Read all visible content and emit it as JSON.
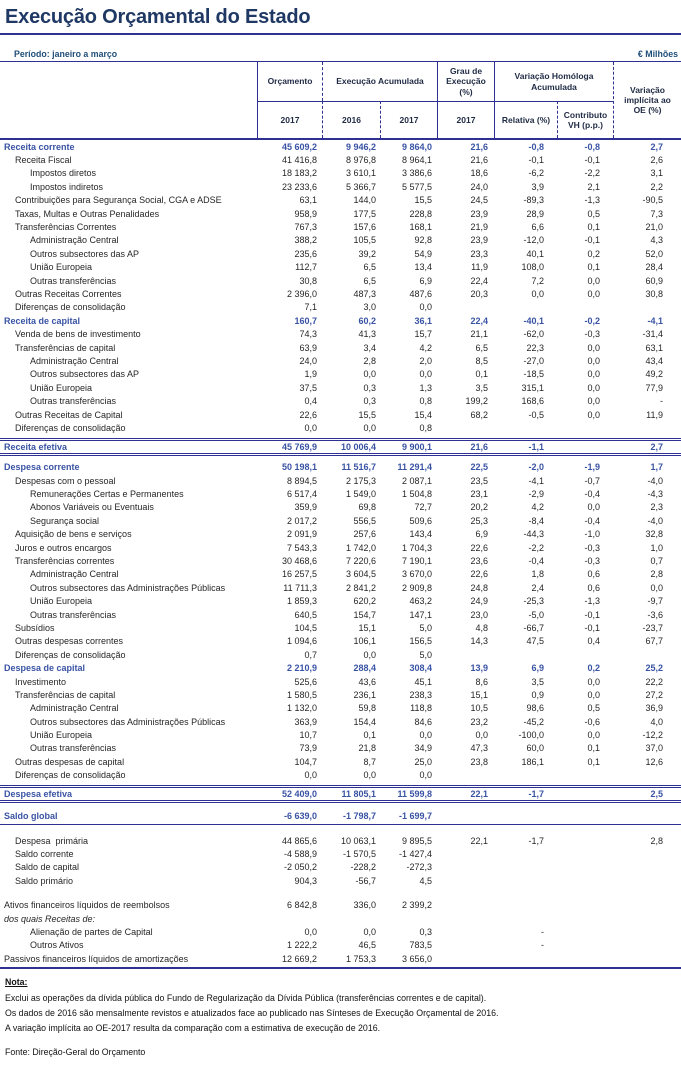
{
  "title": "Execução Orçamental do Estado",
  "meta": {
    "period_label": "Período: janeiro a março",
    "unit_label": "€ Milhões"
  },
  "colors": {
    "line": "#2e3192",
    "title_text": "#1f3864",
    "section_text": "#3953a4",
    "body_text": "#262626"
  },
  "table": {
    "header": {
      "orcamento": "Orçamento",
      "execucao_acumulada": "Execução Acumulada",
      "grau_execucao": "Grau de Execução (%)",
      "variacao_homologa": "Variação Homóloga Acumulada",
      "variacao_implicita": "Variação implícita ao OE (%)",
      "year_orcamento": "2017",
      "year_exec_1": "2016",
      "year_exec_2": "2017",
      "year_grau": "2017",
      "relativa": "Relativa (%)",
      "contributo": "Contributo VH (p.p.)"
    },
    "rows": [
      {
        "label": "Receita corrente",
        "indent": 0,
        "type": "section",
        "values": [
          "45 609,2",
          "9 946,2",
          "9 864,0",
          "21,6",
          "-0,8",
          "-0,8",
          "2,7"
        ]
      },
      {
        "label": "Receita Fiscal",
        "indent": 1,
        "type": "normal",
        "values": [
          "41 416,8",
          "8 976,8",
          "8 964,1",
          "21,6",
          "-0,1",
          "-0,1",
          "2,6"
        ]
      },
      {
        "label": "Impostos diretos",
        "indent": 2,
        "type": "normal",
        "values": [
          "18 183,2",
          "3 610,1",
          "3 386,6",
          "18,6",
          "-6,2",
          "-2,2",
          "3,1"
        ]
      },
      {
        "label": "Impostos indiretos",
        "indent": 2,
        "type": "normal",
        "values": [
          "23 233,6",
          "5 366,7",
          "5 577,5",
          "24,0",
          "3,9",
          "2,1",
          "2,2"
        ]
      },
      {
        "label": "Contribuições para Segurança Social, CGA e ADSE",
        "indent": 1,
        "type": "normal",
        "values": [
          "63,1",
          "144,0",
          "15,5",
          "24,5",
          "-89,3",
          "-1,3",
          "-90,5"
        ]
      },
      {
        "label": "Taxas, Multas e Outras Penalidades",
        "indent": 1,
        "type": "normal",
        "values": [
          "958,9",
          "177,5",
          "228,8",
          "23,9",
          "28,9",
          "0,5",
          "7,3"
        ]
      },
      {
        "label": "Transferências Correntes",
        "indent": 1,
        "type": "normal",
        "values": [
          "767,3",
          "157,6",
          "168,1",
          "21,9",
          "6,6",
          "0,1",
          "21,0"
        ]
      },
      {
        "label": "Administração Central",
        "indent": 2,
        "type": "normal",
        "values": [
          "388,2",
          "105,5",
          "92,8",
          "23,9",
          "-12,0",
          "-0,1",
          "4,3"
        ]
      },
      {
        "label": "Outros subsectores das AP",
        "indent": 2,
        "type": "normal",
        "values": [
          "235,6",
          "39,2",
          "54,9",
          "23,3",
          "40,1",
          "0,2",
          "52,0"
        ]
      },
      {
        "label": "União Europeia",
        "indent": 2,
        "type": "normal",
        "values": [
          "112,7",
          "6,5",
          "13,4",
          "11,9",
          "108,0",
          "0,1",
          "28,4"
        ]
      },
      {
        "label": "Outras transferências",
        "indent": 2,
        "type": "normal",
        "values": [
          "30,8",
          "6,5",
          "6,9",
          "22,4",
          "7,2",
          "0,0",
          "60,9"
        ]
      },
      {
        "label": "Outras Receitas Correntes",
        "indent": 1,
        "type": "normal",
        "values": [
          "2 396,0",
          "487,3",
          "487,6",
          "20,3",
          "0,0",
          "0,0",
          "30,8"
        ]
      },
      {
        "label": "Diferenças de consolidação",
        "indent": 1,
        "type": "normal",
        "values": [
          "7,1",
          "3,0",
          "0,0",
          "",
          "",
          "",
          ""
        ]
      },
      {
        "label": "Receita de capital",
        "indent": 0,
        "type": "section",
        "values": [
          "160,7",
          "60,2",
          "36,1",
          "22,4",
          "-40,1",
          "-0,2",
          "-4,1"
        ]
      },
      {
        "label": "Venda de bens de investimento",
        "indent": 1,
        "type": "normal",
        "values": [
          "74,3",
          "41,3",
          "15,7",
          "21,1",
          "-62,0",
          "-0,3",
          "-31,4"
        ]
      },
      {
        "label": "Transferências de capital",
        "indent": 1,
        "type": "normal",
        "values": [
          "63,9",
          "3,4",
          "4,2",
          "6,5",
          "22,3",
          "0,0",
          "63,1"
        ]
      },
      {
        "label": "Administração Central",
        "indent": 2,
        "type": "normal",
        "values": [
          "24,0",
          "2,8",
          "2,0",
          "8,5",
          "-27,0",
          "0,0",
          "43,4"
        ]
      },
      {
        "label": "Outros subsectores das AP",
        "indent": 2,
        "type": "normal",
        "values": [
          "1,9",
          "0,0",
          "0,0",
          "0,1",
          "-18,5",
          "0,0",
          "49,2"
        ]
      },
      {
        "label": "União Europeia",
        "indent": 2,
        "type": "normal",
        "values": [
          "37,5",
          "0,3",
          "1,3",
          "3,5",
          "315,1",
          "0,0",
          "77,9"
        ]
      },
      {
        "label": "Outras transferências",
        "indent": 2,
        "type": "normal",
        "values": [
          "0,4",
          "0,3",
          "0,8",
          "199,2",
          "168,6",
          "0,0",
          "-"
        ]
      },
      {
        "label": "Outras Receitas de Capital",
        "indent": 1,
        "type": "normal",
        "values": [
          "22,6",
          "15,5",
          "15,4",
          "68,2",
          "-0,5",
          "0,0",
          "11,9"
        ]
      },
      {
        "label": "Diferenças de consolidação",
        "indent": 1,
        "type": "normal",
        "values": [
          "0,0",
          "0,0",
          "0,8",
          "",
          "",
          "",
          ""
        ]
      },
      {
        "label": "Receita efetiva",
        "indent": 0,
        "type": "total",
        "values": [
          "45 769,9",
          "10 006,4",
          "9 900,1",
          "21,6",
          "-1,1",
          "",
          "2,7"
        ]
      },
      {
        "label": "Despesa corrente",
        "indent": 0,
        "type": "section",
        "values": [
          "50 198,1",
          "11 516,7",
          "11 291,4",
          "22,5",
          "-2,0",
          "-1,9",
          "1,7"
        ]
      },
      {
        "label": "Despesas com o pessoal",
        "indent": 1,
        "type": "normal",
        "values": [
          "8 894,5",
          "2 175,3",
          "2 087,1",
          "23,5",
          "-4,1",
          "-0,7",
          "-4,0"
        ]
      },
      {
        "label": "Remunerações Certas e Permanentes",
        "indent": 2,
        "type": "normal",
        "values": [
          "6 517,4",
          "1 549,0",
          "1 504,8",
          "23,1",
          "-2,9",
          "-0,4",
          "-4,3"
        ]
      },
      {
        "label": "Abonos Variáveis ou Eventuais",
        "indent": 2,
        "type": "normal",
        "values": [
          "359,9",
          "69,8",
          "72,7",
          "20,2",
          "4,2",
          "0,0",
          "2,3"
        ]
      },
      {
        "label": "Segurança social",
        "indent": 2,
        "type": "normal",
        "values": [
          "2 017,2",
          "556,5",
          "509,6",
          "25,3",
          "-8,4",
          "-0,4",
          "-4,0"
        ]
      },
      {
        "label": "Aquisição de bens e serviços",
        "indent": 1,
        "type": "normal",
        "values": [
          "2 091,9",
          "257,6",
          "143,4",
          "6,9",
          "-44,3",
          "-1,0",
          "32,8"
        ]
      },
      {
        "label": "Juros e outros encargos",
        "indent": 1,
        "type": "normal",
        "values": [
          "7 543,3",
          "1 742,0",
          "1 704,3",
          "22,6",
          "-2,2",
          "-0,3",
          "1,0"
        ]
      },
      {
        "label": "Transferências correntes",
        "indent": 1,
        "type": "normal",
        "values": [
          "30 468,6",
          "7 220,6",
          "7 190,1",
          "23,6",
          "-0,4",
          "-0,3",
          "0,7"
        ]
      },
      {
        "label": "Administração Central",
        "indent": 2,
        "type": "normal",
        "values": [
          "16 257,5",
          "3 604,5",
          "3 670,0",
          "22,6",
          "1,8",
          "0,6",
          "2,8"
        ]
      },
      {
        "label": "Outros subsectores das Administrações Públicas",
        "indent": 2,
        "type": "normal",
        "values": [
          "11 711,3",
          "2 841,2",
          "2 909,8",
          "24,8",
          "2,4",
          "0,6",
          "0,0"
        ]
      },
      {
        "label": "União Europeia",
        "indent": 2,
        "type": "normal",
        "values": [
          "1 859,3",
          "620,2",
          "463,2",
          "24,9",
          "-25,3",
          "-1,3",
          "-9,7"
        ]
      },
      {
        "label": "Outras transferências",
        "indent": 2,
        "type": "normal",
        "values": [
          "640,5",
          "154,7",
          "147,1",
          "23,0",
          "-5,0",
          "-0,1",
          "-3,6"
        ]
      },
      {
        "label": "Subsídios",
        "indent": 1,
        "type": "normal",
        "values": [
          "104,5",
          "15,1",
          "5,0",
          "4,8",
          "-66,7",
          "-0,1",
          "-23,7"
        ]
      },
      {
        "label": "Outras despesas correntes",
        "indent": 1,
        "type": "normal",
        "values": [
          "1 094,6",
          "106,1",
          "156,5",
          "14,3",
          "47,5",
          "0,4",
          "67,7"
        ]
      },
      {
        "label": "Diferenças de consolidação",
        "indent": 1,
        "type": "normal",
        "values": [
          "0,7",
          "0,0",
          "5,0",
          "",
          "",
          "",
          ""
        ]
      },
      {
        "label": "Despesa de capital",
        "indent": 0,
        "type": "section",
        "values": [
          "2 210,9",
          "288,4",
          "308,4",
          "13,9",
          "6,9",
          "0,2",
          "25,2"
        ]
      },
      {
        "label": "Investimento",
        "indent": 1,
        "type": "normal",
        "values": [
          "525,6",
          "43,6",
          "45,1",
          "8,6",
          "3,5",
          "0,0",
          "22,2"
        ]
      },
      {
        "label": "Transferências de capital",
        "indent": 1,
        "type": "normal",
        "values": [
          "1 580,5",
          "236,1",
          "238,3",
          "15,1",
          "0,9",
          "0,0",
          "27,2"
        ]
      },
      {
        "label": "Administração Central",
        "indent": 2,
        "type": "normal",
        "values": [
          "1 132,0",
          "59,8",
          "118,8",
          "10,5",
          "98,6",
          "0,5",
          "36,9"
        ]
      },
      {
        "label": "Outros subsectores das Administrações Públicas",
        "indent": 2,
        "type": "normal",
        "values": [
          "363,9",
          "154,4",
          "84,6",
          "23,2",
          "-45,2",
          "-0,6",
          "4,0"
        ]
      },
      {
        "label": "União Europeia",
        "indent": 2,
        "type": "normal",
        "values": [
          "10,7",
          "0,1",
          "0,0",
          "0,0",
          "-100,0",
          "0,0",
          "-12,2"
        ]
      },
      {
        "label": "Outras transferências",
        "indent": 2,
        "type": "normal",
        "values": [
          "73,9",
          "21,8",
          "34,9",
          "47,3",
          "60,0",
          "0,1",
          "37,0"
        ]
      },
      {
        "label": "Outras despesas de capital",
        "indent": 1,
        "type": "normal",
        "values": [
          "104,7",
          "8,7",
          "25,0",
          "23,8",
          "186,1",
          "0,1",
          "12,6"
        ]
      },
      {
        "label": "Diferenças de consolidação",
        "indent": 1,
        "type": "normal",
        "values": [
          "0,0",
          "0,0",
          "0,0",
          "",
          "",
          "",
          ""
        ]
      },
      {
        "label": "Despesa efetiva",
        "indent": 0,
        "type": "total",
        "values": [
          "52 409,0",
          "11 805,1",
          "11 599,8",
          "22,1",
          "-1,7",
          "",
          "2,5"
        ]
      },
      {
        "label": "Saldo global",
        "indent": 0,
        "type": "saldo",
        "values": [
          "-6 639,0",
          "-1 798,7",
          "-1 699,7",
          "",
          "",
          "",
          ""
        ]
      },
      {
        "label": "Despesa  primária",
        "indent": 1,
        "type": "normal",
        "values": [
          "44 865,6",
          "10 063,1",
          "9 895,5",
          "22,1",
          "-1,7",
          "",
          "2,8"
        ]
      },
      {
        "label": "Saldo corrente",
        "indent": 1,
        "type": "normal",
        "values": [
          "-4 588,9",
          "-1 570,5",
          "-1 427,4",
          "",
          "",
          "",
          ""
        ]
      },
      {
        "label": "Saldo de capital",
        "indent": 1,
        "type": "normal",
        "values": [
          "-2 050,2",
          "-228,2",
          "-272,3",
          "",
          "",
          "",
          ""
        ]
      },
      {
        "label": "Saldo primário",
        "indent": 1,
        "type": "normal",
        "values": [
          "904,3",
          "-56,7",
          "4,5",
          "",
          "",
          "",
          ""
        ]
      },
      {
        "label": "Ativos financeiros líquidos de reembolsos",
        "indent": 0,
        "type": "normal",
        "gap": true,
        "values": [
          "6 842,8",
          "336,0",
          "2 399,2",
          "",
          "",
          "",
          ""
        ]
      },
      {
        "label": "dos quais Receitas de:",
        "indent": 0,
        "type": "italic",
        "values": [
          "",
          "",
          "",
          "",
          "",
          "",
          ""
        ]
      },
      {
        "label": "Alienação de partes de Capital",
        "indent": 2,
        "type": "normal",
        "values": [
          "0,0",
          "0,0",
          "0,3",
          "",
          "-",
          "",
          ""
        ]
      },
      {
        "label": "Outros Ativos",
        "indent": 2,
        "type": "normal",
        "values": [
          "1 222,2",
          "46,5",
          "783,5",
          "",
          "-",
          "",
          ""
        ]
      },
      {
        "label": "Passivos financeiros líquidos de amortizações",
        "indent": 0,
        "type": "normal",
        "values": [
          "12 669,2",
          "1 753,3",
          "3 656,0",
          "",
          "",
          "",
          ""
        ]
      }
    ]
  },
  "notes": {
    "heading": "Nota:",
    "lines": [
      "Exclui as operações da dívida pública do Fundo de Regularização da Dívida Pública (transferências correntes e de capital).",
      "Os dados de 2016 são mensalmente revistos e atualizados face ao publicado nas Sínteses de Execução Orçamental de 2016.",
      "A variação implícita ao OE-2017 resulta da comparação com a estimativa de execução de 2016."
    ],
    "source": "Fonte: Direção-Geral do Orçamento"
  }
}
